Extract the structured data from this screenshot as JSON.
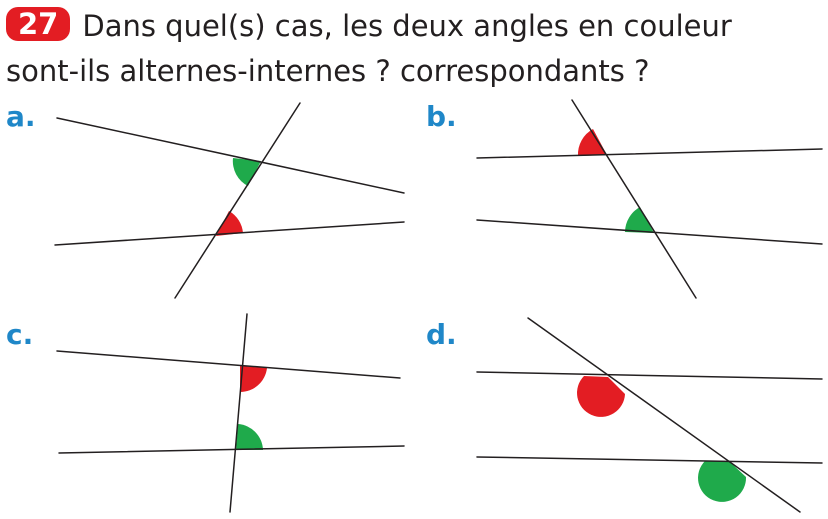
{
  "exercise": {
    "number": "27",
    "text_line1": "Dans quel(s) cas, les deux angles en couleur",
    "text_line2": "sont-ils alternes-internes ? correspondants ?"
  },
  "figures": [
    {
      "label": "a."
    },
    {
      "label": "b."
    },
    {
      "label": "c."
    },
    {
      "label": "d."
    }
  ],
  "colors": {
    "badge": "#e31d23",
    "label": "#1f87c8",
    "angle_red": "#e31d23",
    "angle_green": "#1faa4b",
    "line": "#231f20"
  }
}
